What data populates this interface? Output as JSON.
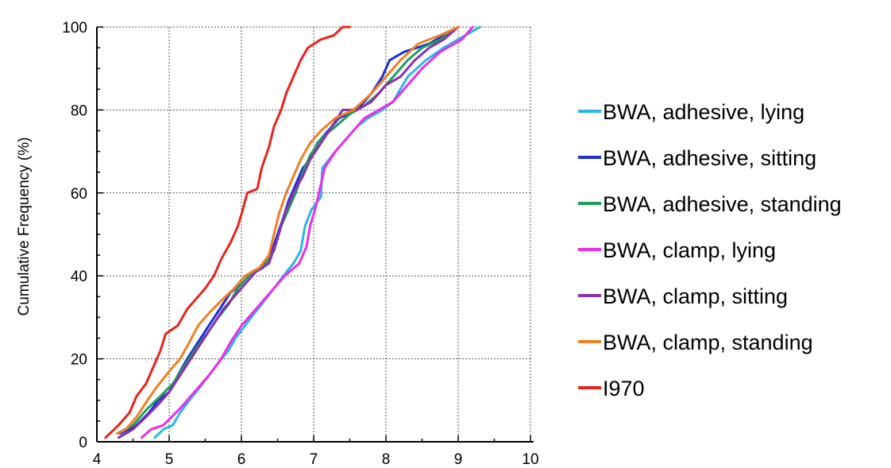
{
  "chart_data": {
    "type": "line",
    "title": "",
    "xlabel": "",
    "ylabel": "Cumulative Frequency (%)",
    "xlim": [
      4,
      10
    ],
    "ylim": [
      0,
      100
    ],
    "xticks": [
      "4",
      "5",
      "6",
      "7",
      "8",
      "9",
      "10"
    ],
    "yticks": [
      "0",
      "20",
      "40",
      "60",
      "80",
      "100"
    ],
    "grid": true,
    "legend_position": "right",
    "series": [
      {
        "name": "BWA, adhesive, lying",
        "color": "#29b6e8",
        "points": [
          [
            4.8,
            1
          ],
          [
            4.92,
            3
          ],
          [
            5.05,
            4
          ],
          [
            5.15,
            7
          ],
          [
            5.28,
            10
          ],
          [
            5.42,
            13
          ],
          [
            5.55,
            16
          ],
          [
            5.68,
            19
          ],
          [
            5.82,
            22
          ],
          [
            5.92,
            25
          ],
          [
            6.05,
            28
          ],
          [
            6.18,
            31
          ],
          [
            6.32,
            34
          ],
          [
            6.45,
            37
          ],
          [
            6.58,
            40
          ],
          [
            6.72,
            43
          ],
          [
            6.82,
            46
          ],
          [
            6.88,
            52
          ],
          [
            6.97,
            56
          ],
          [
            7.1,
            59
          ],
          [
            7.12,
            66
          ],
          [
            7.3,
            70
          ],
          [
            7.45,
            73
          ],
          [
            7.6,
            76
          ],
          [
            7.75,
            78
          ],
          [
            7.95,
            80
          ],
          [
            8.1,
            82
          ],
          [
            8.3,
            88
          ],
          [
            8.55,
            92
          ],
          [
            8.8,
            95
          ],
          [
            9.1,
            98
          ],
          [
            9.3,
            100
          ]
        ]
      },
      {
        "name": "BWA, adhesive, sitting",
        "color": "#1a2fd6",
        "points": [
          [
            4.32,
            2
          ],
          [
            4.55,
            4
          ],
          [
            4.72,
            7
          ],
          [
            4.85,
            10
          ],
          [
            5.0,
            12
          ],
          [
            5.12,
            16
          ],
          [
            5.25,
            20
          ],
          [
            5.4,
            24
          ],
          [
            5.55,
            28
          ],
          [
            5.7,
            32
          ],
          [
            5.85,
            36
          ],
          [
            6.0,
            38
          ],
          [
            6.1,
            40
          ],
          [
            6.3,
            42
          ],
          [
            6.42,
            46
          ],
          [
            6.5,
            50
          ],
          [
            6.58,
            54
          ],
          [
            6.65,
            58
          ],
          [
            6.75,
            62
          ],
          [
            6.85,
            66
          ],
          [
            6.95,
            68
          ],
          [
            7.05,
            72
          ],
          [
            7.2,
            75
          ],
          [
            7.35,
            78
          ],
          [
            7.6,
            80
          ],
          [
            7.8,
            84
          ],
          [
            7.95,
            88
          ],
          [
            8.05,
            92
          ],
          [
            8.25,
            94
          ],
          [
            8.6,
            96
          ],
          [
            9.0,
            100
          ]
        ]
      },
      {
        "name": "BWA, adhesive, standing",
        "color": "#1e9e5a",
        "points": [
          [
            4.28,
            2
          ],
          [
            4.5,
            4
          ],
          [
            4.7,
            8
          ],
          [
            4.88,
            11
          ],
          [
            5.05,
            14
          ],
          [
            5.2,
            18
          ],
          [
            5.35,
            22
          ],
          [
            5.52,
            26
          ],
          [
            5.68,
            30
          ],
          [
            5.82,
            33
          ],
          [
            5.95,
            37
          ],
          [
            6.1,
            40
          ],
          [
            6.3,
            42
          ],
          [
            6.45,
            46
          ],
          [
            6.55,
            52
          ],
          [
            6.65,
            56
          ],
          [
            6.75,
            60
          ],
          [
            6.85,
            65
          ],
          [
            6.95,
            69
          ],
          [
            7.1,
            73
          ],
          [
            7.3,
            76
          ],
          [
            7.5,
            79
          ],
          [
            7.7,
            81
          ],
          [
            7.9,
            84
          ],
          [
            8.1,
            88
          ],
          [
            8.3,
            92
          ],
          [
            8.5,
            95
          ],
          [
            8.75,
            97
          ],
          [
            9.0,
            100
          ]
        ]
      },
      {
        "name": "BWA, clamp, lying",
        "color": "#ee2ce6",
        "points": [
          [
            4.62,
            1
          ],
          [
            4.75,
            3
          ],
          [
            4.92,
            4
          ],
          [
            5.15,
            8
          ],
          [
            5.35,
            12
          ],
          [
            5.55,
            16
          ],
          [
            5.72,
            20
          ],
          [
            5.85,
            24
          ],
          [
            6.0,
            28
          ],
          [
            6.2,
            32
          ],
          [
            6.4,
            36
          ],
          [
            6.6,
            40
          ],
          [
            6.8,
            43
          ],
          [
            6.9,
            47
          ],
          [
            6.95,
            52
          ],
          [
            7.02,
            56
          ],
          [
            7.1,
            62
          ],
          [
            7.15,
            66
          ],
          [
            7.3,
            70
          ],
          [
            7.5,
            74
          ],
          [
            7.7,
            78
          ],
          [
            7.9,
            80
          ],
          [
            8.1,
            82
          ],
          [
            8.3,
            86
          ],
          [
            8.5,
            90
          ],
          [
            8.75,
            94
          ],
          [
            9.05,
            97
          ],
          [
            9.2,
            100
          ]
        ]
      },
      {
        "name": "BWA, clamp, sitting",
        "color": "#8b2fb0",
        "points": [
          [
            4.3,
            1
          ],
          [
            4.5,
            3
          ],
          [
            4.68,
            6
          ],
          [
            4.85,
            9
          ],
          [
            5.0,
            12
          ],
          [
            5.15,
            16
          ],
          [
            5.3,
            20
          ],
          [
            5.45,
            24
          ],
          [
            5.6,
            28
          ],
          [
            5.75,
            32
          ],
          [
            5.9,
            35
          ],
          [
            6.05,
            38
          ],
          [
            6.2,
            41
          ],
          [
            6.38,
            43
          ],
          [
            6.48,
            48
          ],
          [
            6.55,
            52
          ],
          [
            6.62,
            56
          ],
          [
            6.72,
            60
          ],
          [
            6.85,
            64
          ],
          [
            6.95,
            68
          ],
          [
            7.1,
            72
          ],
          [
            7.25,
            76
          ],
          [
            7.4,
            80
          ],
          [
            7.6,
            80
          ],
          [
            7.8,
            82
          ],
          [
            8.0,
            86
          ],
          [
            8.2,
            88
          ],
          [
            8.4,
            92
          ],
          [
            8.6,
            95
          ],
          [
            8.8,
            97
          ],
          [
            9.0,
            100
          ]
        ]
      },
      {
        "name": "BWA, clamp, standing",
        "color": "#f07f22",
        "points": [
          [
            4.28,
            2
          ],
          [
            4.4,
            3
          ],
          [
            4.55,
            6
          ],
          [
            4.7,
            10
          ],
          [
            4.82,
            13
          ],
          [
            5.0,
            17
          ],
          [
            5.15,
            20
          ],
          [
            5.28,
            24
          ],
          [
            5.4,
            28
          ],
          [
            5.55,
            31
          ],
          [
            5.72,
            34
          ],
          [
            5.9,
            37
          ],
          [
            6.05,
            40
          ],
          [
            6.25,
            42
          ],
          [
            6.38,
            45
          ],
          [
            6.45,
            50
          ],
          [
            6.52,
            55
          ],
          [
            6.62,
            60
          ],
          [
            6.72,
            64
          ],
          [
            6.82,
            68
          ],
          [
            6.95,
            72
          ],
          [
            7.1,
            75
          ],
          [
            7.3,
            78
          ],
          [
            7.55,
            80
          ],
          [
            7.8,
            84
          ],
          [
            8.0,
            88
          ],
          [
            8.2,
            92
          ],
          [
            8.45,
            96
          ],
          [
            8.75,
            98
          ],
          [
            9.0,
            100
          ]
        ]
      },
      {
        "name": "I970",
        "color": "#e8231c",
        "points": [
          [
            4.12,
            1
          ],
          [
            4.3,
            4
          ],
          [
            4.45,
            7
          ],
          [
            4.55,
            11
          ],
          [
            4.68,
            14
          ],
          [
            4.78,
            18
          ],
          [
            4.88,
            22
          ],
          [
            4.95,
            26
          ],
          [
            5.12,
            28
          ],
          [
            5.25,
            32
          ],
          [
            5.4,
            35
          ],
          [
            5.5,
            37
          ],
          [
            5.62,
            40
          ],
          [
            5.72,
            44
          ],
          [
            5.85,
            48
          ],
          [
            5.95,
            52
          ],
          [
            6.02,
            56
          ],
          [
            6.08,
            60
          ],
          [
            6.22,
            61
          ],
          [
            6.28,
            66
          ],
          [
            6.38,
            71
          ],
          [
            6.45,
            76
          ],
          [
            6.55,
            80
          ],
          [
            6.62,
            84
          ],
          [
            6.72,
            88
          ],
          [
            6.82,
            92
          ],
          [
            6.92,
            95
          ],
          [
            7.1,
            97
          ],
          [
            7.28,
            98
          ],
          [
            7.4,
            100
          ],
          [
            7.5,
            100
          ]
        ]
      }
    ]
  }
}
